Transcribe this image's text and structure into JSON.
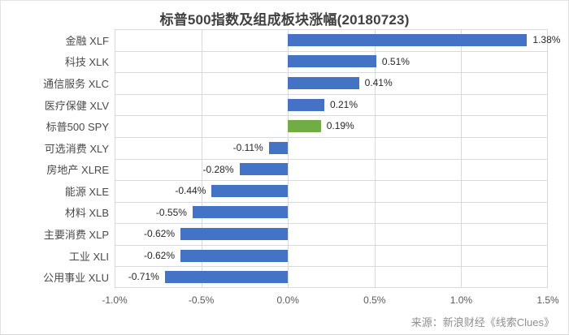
{
  "title": "标普500指数及组成板块涨幅(20180723)",
  "source": "来源：新浪财经《线索Clues》",
  "colors": {
    "bar_blue": "#4472C4",
    "bar_green": "#70AD47",
    "gridline": "#D9D9D9"
  },
  "chart_data": {
    "type": "bar",
    "orientation": "horizontal",
    "title": "标普500指数及组成板块涨幅(20180723)",
    "categories": [
      "金融 XLF",
      "科技 XLK",
      "通信服务 XLC",
      "医疗保健 XLV",
      "标普500 SPY",
      "可选消费 XLY",
      "房地产 XLRE",
      "能源 XLE",
      "材料 XLB",
      "主要消费 XLP",
      "工业 XLI",
      "公用事业 XLU"
    ],
    "values": [
      1.38,
      0.51,
      0.41,
      0.21,
      0.19,
      -0.11,
      -0.28,
      -0.44,
      -0.55,
      -0.62,
      -0.62,
      -0.71
    ],
    "value_labels": [
      "1.38%",
      "0.51%",
      "0.41%",
      "0.21%",
      "0.19%",
      "-0.11%",
      "-0.28%",
      "-0.44%",
      "-0.55%",
      "-0.62%",
      "-0.62%",
      "-0.71%"
    ],
    "highlight_index": 4,
    "xlim": [
      -1.0,
      1.5
    ],
    "xticks": [
      -1.0,
      -0.5,
      0.0,
      0.5,
      1.0,
      1.5
    ],
    "xtick_labels": [
      "-1.0%",
      "-0.5%",
      "0.0%",
      "0.5%",
      "1.0%",
      "1.5%"
    ],
    "grid": true,
    "legend": "none"
  }
}
